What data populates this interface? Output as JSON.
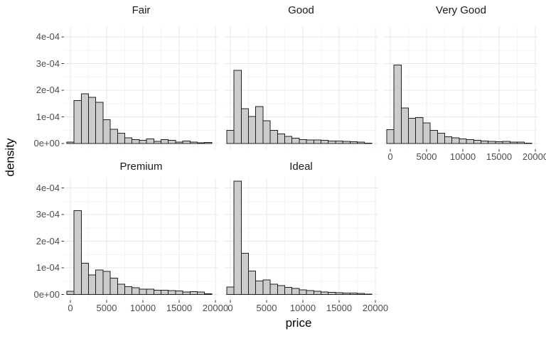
{
  "chart_data": {
    "type": "bar",
    "chart_kind": "faceted_histogram",
    "title": "",
    "xlabel": "price",
    "ylabel": "density",
    "legend": "none",
    "grid": true,
    "bin_width": 1000,
    "bin_centers": [
      0,
      1000,
      2000,
      3000,
      4000,
      5000,
      6000,
      7000,
      8000,
      9000,
      10000,
      11000,
      12000,
      13000,
      14000,
      15000,
      16000,
      17000,
      18000,
      19000
    ],
    "density_unit": "1e-04",
    "facets": [
      {
        "label": "Fair",
        "row": 0,
        "col": 0,
        "densities": [
          0.05,
          1.62,
          1.87,
          1.73,
          1.55,
          0.9,
          0.54,
          0.39,
          0.21,
          0.15,
          0.12,
          0.17,
          0.08,
          0.15,
          0.12,
          0.06,
          0.09,
          0.05,
          0.03,
          0.04
        ]
      },
      {
        "label": "Good",
        "row": 0,
        "col": 1,
        "densities": [
          0.5,
          2.75,
          1.31,
          1.02,
          1.39,
          0.85,
          0.5,
          0.36,
          0.27,
          0.2,
          0.15,
          0.13,
          0.13,
          0.12,
          0.1,
          0.1,
          0.08,
          0.07,
          0.05,
          0.02
        ]
      },
      {
        "label": "Very Good",
        "row": 0,
        "col": 2,
        "densities": [
          0.52,
          2.95,
          1.34,
          0.95,
          0.97,
          0.78,
          0.5,
          0.39,
          0.26,
          0.21,
          0.18,
          0.15,
          0.12,
          0.1,
          0.08,
          0.07,
          0.08,
          0.06,
          0.05,
          0.02
        ]
      },
      {
        "label": "Premium",
        "row": 1,
        "col": 0,
        "densities": [
          0.12,
          3.15,
          1.17,
          0.74,
          0.92,
          0.87,
          0.61,
          0.39,
          0.3,
          0.25,
          0.2,
          0.2,
          0.16,
          0.16,
          0.15,
          0.13,
          0.09,
          0.11,
          0.1,
          0.03
        ]
      },
      {
        "label": "Ideal",
        "row": 1,
        "col": 1,
        "densities": [
          0.28,
          4.25,
          1.55,
          0.88,
          0.51,
          0.55,
          0.39,
          0.33,
          0.27,
          0.23,
          0.18,
          0.15,
          0.12,
          0.09,
          0.08,
          0.07,
          0.06,
          0.05,
          0.04,
          0.02
        ]
      }
    ],
    "x_axis": {
      "ticks": [
        0,
        5000,
        10000,
        15000,
        20000
      ],
      "tick_labels": [
        "0",
        "5000",
        "10000",
        "15000",
        "20000"
      ],
      "minor_ticks": [
        2500,
        7500,
        12500,
        17500
      ],
      "range": [
        -883,
        20392
      ]
    },
    "y_axis": {
      "ticks": [
        0,
        1,
        2,
        3,
        4
      ],
      "tick_labels": [
        "0e+00",
        "1e-04",
        "2e-04",
        "3e-04",
        "4e-04"
      ],
      "minor_ticks": [
        0.5,
        1.5,
        2.5,
        3.5
      ],
      "range": [
        -0.21,
        4.39
      ]
    },
    "colors": {
      "background": "#FFFFFF",
      "bar_fill": "#CCCCCC",
      "bar_stroke": "#1F1F1F",
      "grid_major": "#E8E8E8",
      "grid_minor": "#F4F4F4",
      "axis_text": "#4D4D4D",
      "tick_mark": "#333333",
      "strip_text": "#1A1A1A",
      "title_text": "#000000"
    }
  }
}
